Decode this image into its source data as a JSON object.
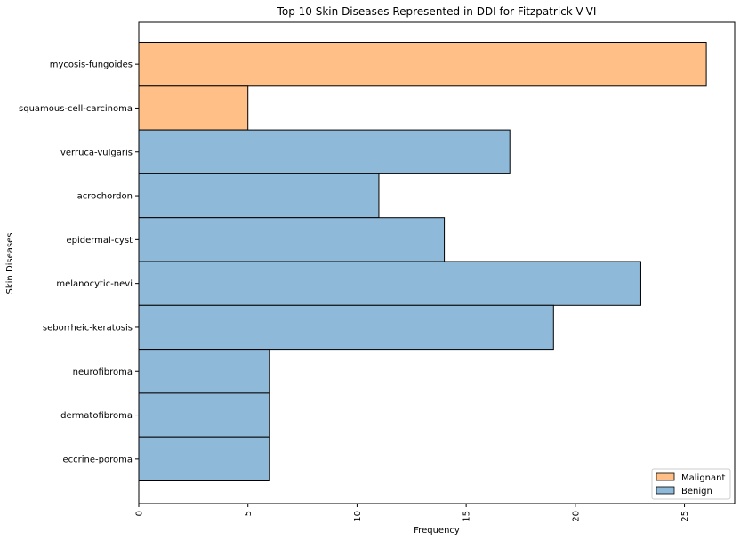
{
  "chart_data": {
    "type": "bar",
    "orientation": "horizontal",
    "title": "Top 10 Skin Diseases Represented in DDI for Fitzpatrick V-VI",
    "xlabel": "Frequency",
    "ylabel": "Skin Diseases",
    "xlim": [
      0,
      27.3
    ],
    "xticks": [
      0,
      5,
      10,
      15,
      20,
      25
    ],
    "grid": false,
    "legend_position": "bottom-right",
    "series": [
      {
        "name": "Malignant",
        "color": "#ffbf86"
      },
      {
        "name": "Benign",
        "color": "#8fb9d9"
      }
    ],
    "categories": [
      {
        "label": "mycosis-fungoides",
        "value": 26,
        "series": "Malignant"
      },
      {
        "label": "squamous-cell-carcinoma",
        "value": 5,
        "series": "Malignant"
      },
      {
        "label": "verruca-vulgaris",
        "value": 17,
        "series": "Benign"
      },
      {
        "label": "acrochordon",
        "value": 11,
        "series": "Benign"
      },
      {
        "label": "epidermal-cyst",
        "value": 14,
        "series": "Benign"
      },
      {
        "label": "melanocytic-nevi",
        "value": 23,
        "series": "Benign"
      },
      {
        "label": "seborrheic-keratosis",
        "value": 19,
        "series": "Benign"
      },
      {
        "label": "neurofibroma",
        "value": 6,
        "series": "Benign"
      },
      {
        "label": "dermatofibroma",
        "value": 6,
        "series": "Benign"
      },
      {
        "label": "eccrine-poroma",
        "value": 6,
        "series": "Benign"
      }
    ]
  }
}
